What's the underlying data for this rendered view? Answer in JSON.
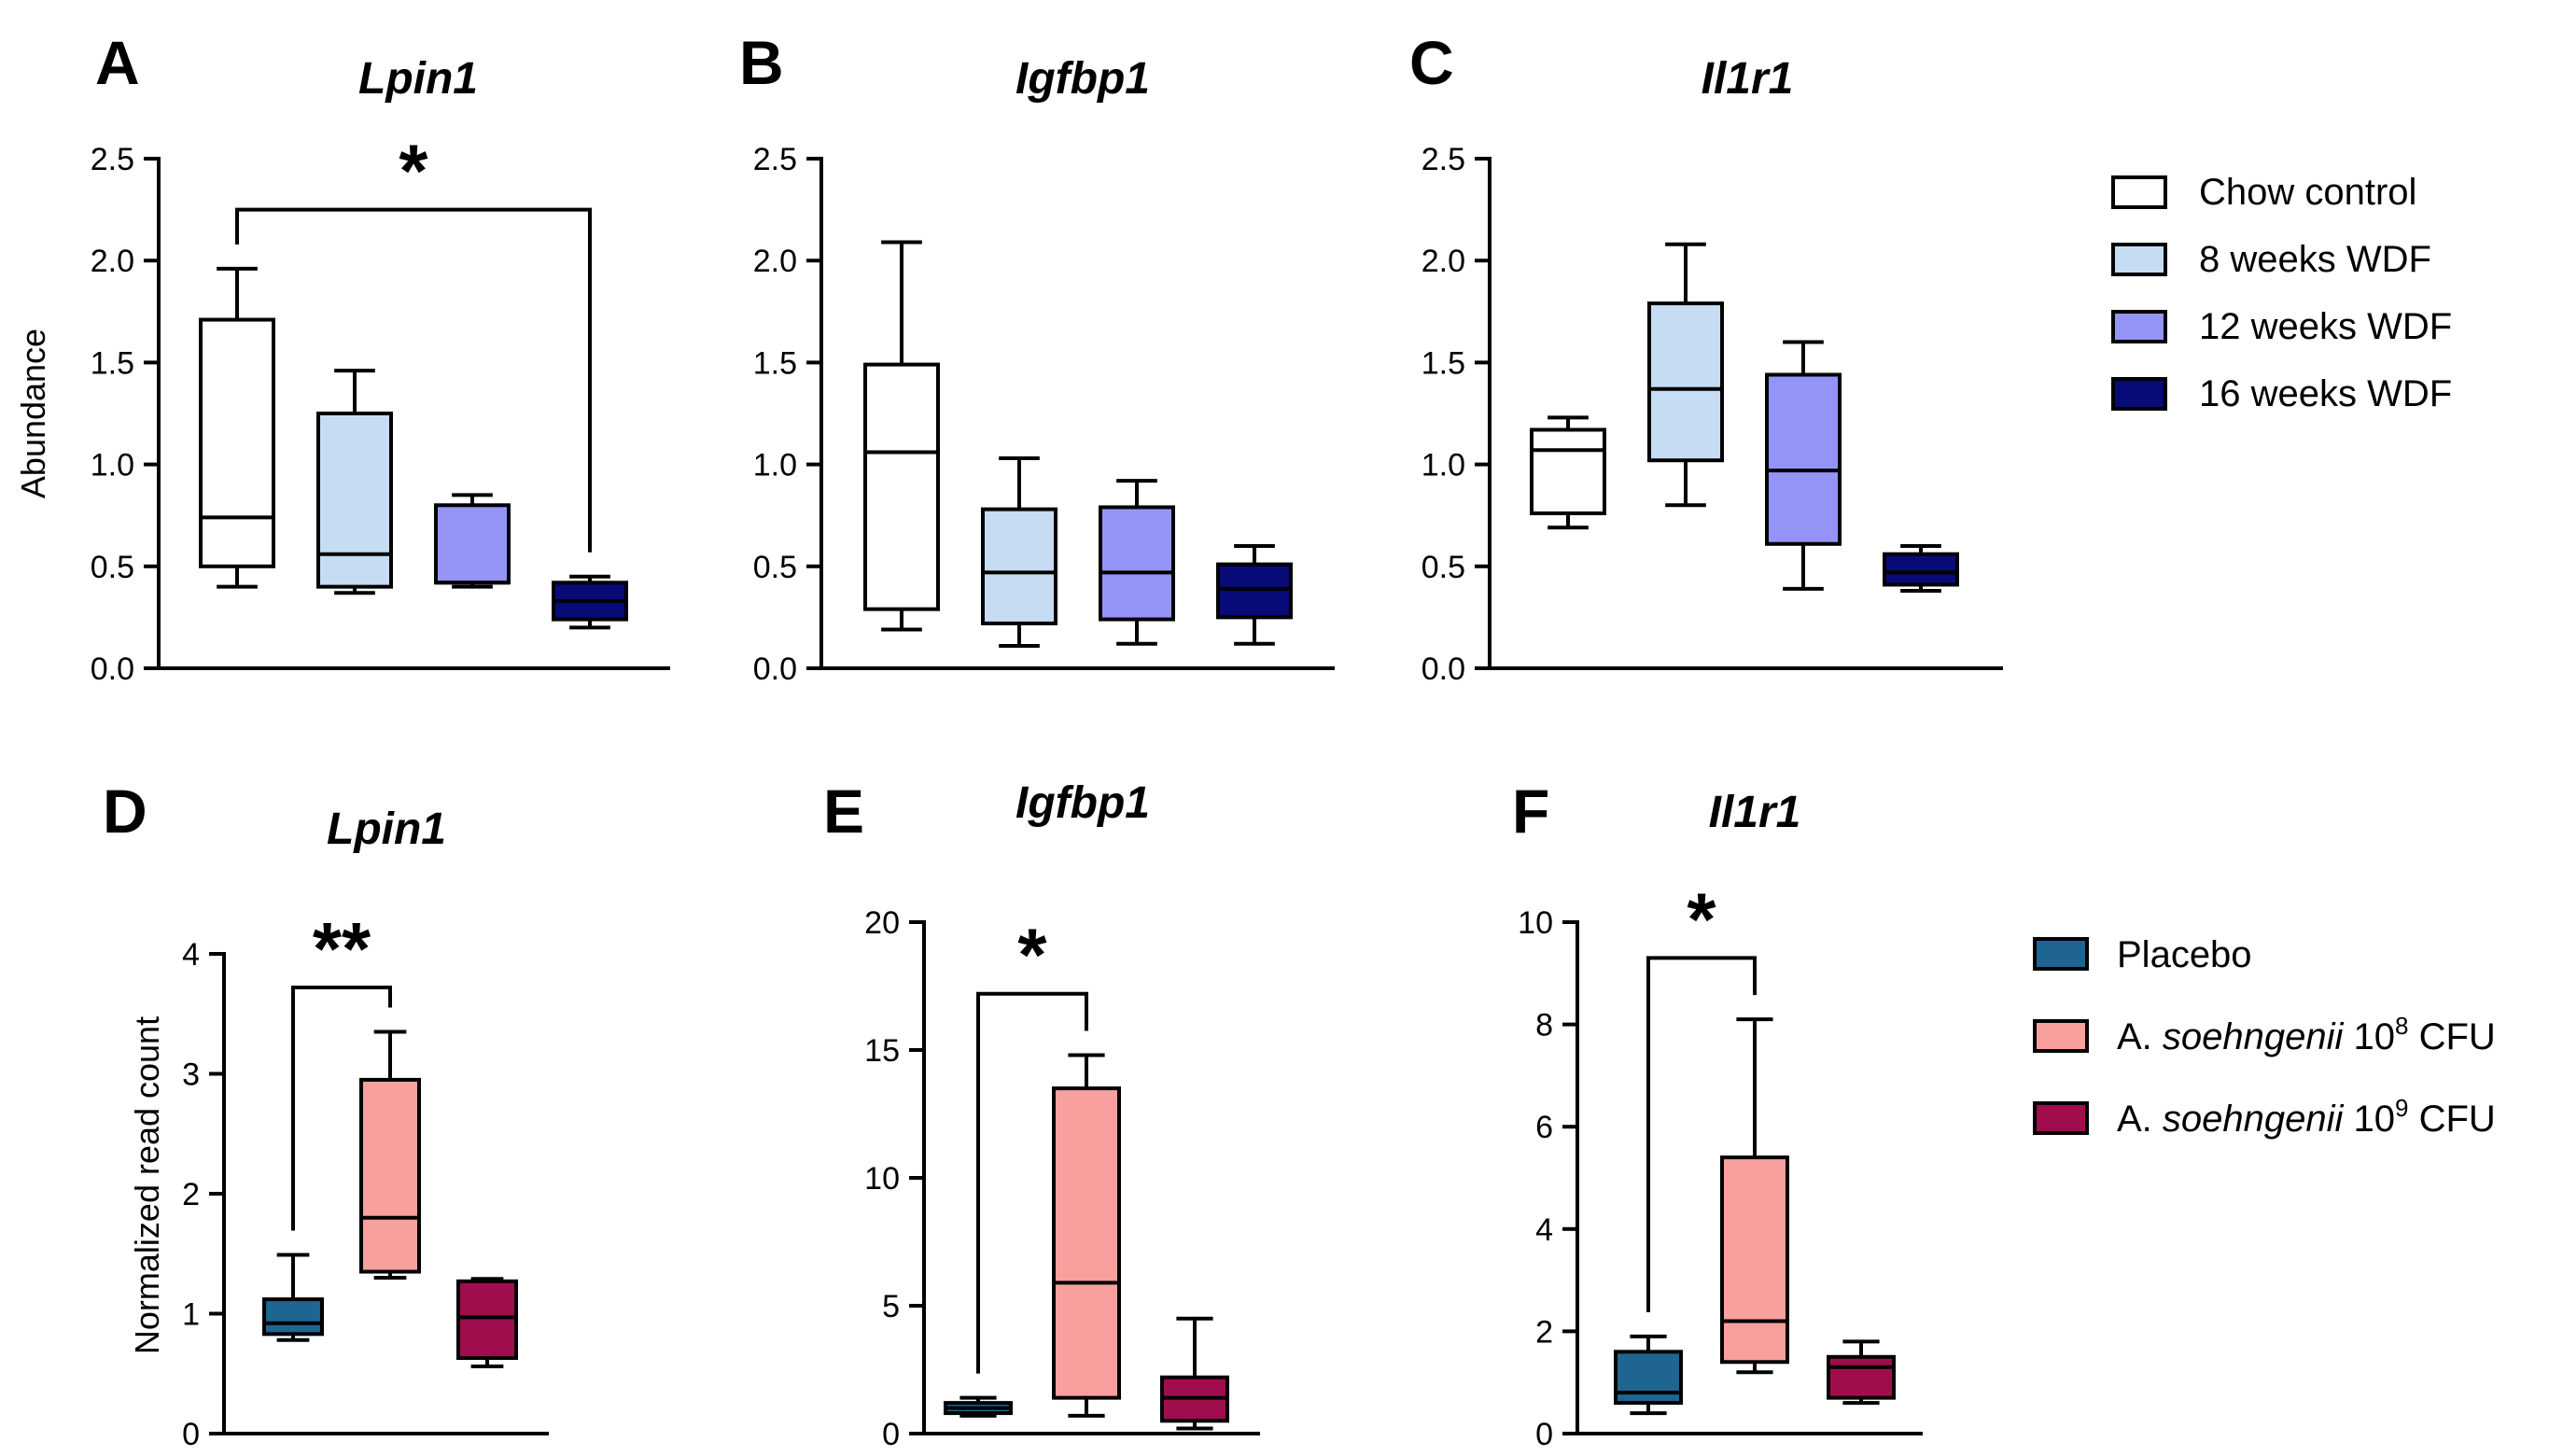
{
  "chart_data": [
    {
      "panel": "A",
      "title": "Lpin1",
      "type": "box",
      "ylabel": "Abundance",
      "ylim": [
        0,
        2.5
      ],
      "yticks": [
        "0.0",
        "0.5",
        "1.0",
        "1.5",
        "2.0",
        "2.5"
      ],
      "legend_group": "top",
      "boxes": [
        {
          "group": "Chow control",
          "min": 0.4,
          "q1": 0.5,
          "median": 0.74,
          "q3": 1.71,
          "max": 1.96
        },
        {
          "group": "8 weeks WDF",
          "min": 0.37,
          "q1": 0.4,
          "median": 0.56,
          "q3": 1.25,
          "max": 1.46
        },
        {
          "group": "12 weeks WDF",
          "min": 0.4,
          "q1": 0.42,
          "median": 0.42,
          "q3": 0.8,
          "max": 0.85
        },
        {
          "group": "16 weeks WDF",
          "min": 0.2,
          "q1": 0.24,
          "median": 0.33,
          "q3": 0.42,
          "max": 0.45
        }
      ],
      "significance": [
        {
          "from": 0,
          "to": 3,
          "y": 2.25,
          "label": "*"
        }
      ]
    },
    {
      "panel": "B",
      "title": "Igfbp1",
      "type": "box",
      "ylabel": "",
      "ylim": [
        0,
        2.5
      ],
      "yticks": [
        "0.0",
        "0.5",
        "1.0",
        "1.5",
        "2.0",
        "2.5"
      ],
      "legend_group": "top",
      "boxes": [
        {
          "group": "Chow control",
          "min": 0.19,
          "q1": 0.29,
          "median": 1.06,
          "q3": 1.49,
          "max": 2.09
        },
        {
          "group": "8 weeks WDF",
          "min": 0.11,
          "q1": 0.22,
          "median": 0.47,
          "q3": 0.78,
          "max": 1.03
        },
        {
          "group": "12 weeks WDF",
          "min": 0.12,
          "q1": 0.24,
          "median": 0.47,
          "q3": 0.79,
          "max": 0.92
        },
        {
          "group": "16 weeks WDF",
          "min": 0.12,
          "q1": 0.25,
          "median": 0.39,
          "q3": 0.51,
          "max": 0.6
        }
      ],
      "significance": []
    },
    {
      "panel": "C",
      "title": "Il1r1",
      "type": "box",
      "ylabel": "",
      "ylim": [
        0,
        2.5
      ],
      "yticks": [
        "0.0",
        "0.5",
        "1.0",
        "1.5",
        "2.0",
        "2.5"
      ],
      "legend_group": "top",
      "boxes": [
        {
          "group": "Chow control",
          "min": 0.69,
          "q1": 0.76,
          "median": 1.07,
          "q3": 1.17,
          "max": 1.23
        },
        {
          "group": "8 weeks WDF",
          "min": 0.8,
          "q1": 1.02,
          "median": 1.37,
          "q3": 1.79,
          "max": 2.08
        },
        {
          "group": "12 weeks WDF",
          "min": 0.39,
          "q1": 0.61,
          "median": 0.97,
          "q3": 1.44,
          "max": 1.6
        },
        {
          "group": "16 weeks WDF",
          "min": 0.38,
          "q1": 0.41,
          "median": 0.47,
          "q3": 0.56,
          "max": 0.6
        }
      ],
      "significance": []
    },
    {
      "panel": "D",
      "title": "Lpin1",
      "type": "box",
      "ylabel": "Normalized read count",
      "ylim": [
        0,
        4
      ],
      "yticks": [
        "0",
        "1",
        "2",
        "3",
        "4"
      ],
      "legend_group": "bottom",
      "boxes": [
        {
          "group": "Placebo",
          "min": 0.78,
          "q1": 0.83,
          "median": 0.92,
          "q3": 1.12,
          "max": 1.49
        },
        {
          "group": "A. soehngenii 10^8 CFU",
          "min": 1.3,
          "q1": 1.35,
          "median": 1.8,
          "q3": 2.95,
          "max": 3.35
        },
        {
          "group": "A. soehngenii 10^9 CFU",
          "min": 0.56,
          "q1": 0.63,
          "median": 0.97,
          "q3": 1.27,
          "max": 1.29
        }
      ],
      "significance": [
        {
          "from": 0,
          "to": 1,
          "y": 3.72,
          "label": "**"
        }
      ]
    },
    {
      "panel": "E",
      "title": "Igfbp1",
      "type": "box",
      "ylabel": "",
      "ylim": [
        0,
        20
      ],
      "yticks": [
        "0",
        "5",
        "10",
        "15",
        "20"
      ],
      "legend_group": "bottom",
      "boxes": [
        {
          "group": "Placebo",
          "min": 0.7,
          "q1": 0.8,
          "median": 1.0,
          "q3": 1.2,
          "max": 1.4
        },
        {
          "group": "A. soehngenii 10^8 CFU",
          "min": 0.7,
          "q1": 1.4,
          "median": 5.9,
          "q3": 13.5,
          "max": 14.8
        },
        {
          "group": "A. soehngenii 10^9 CFU",
          "min": 0.2,
          "q1": 0.5,
          "median": 1.4,
          "q3": 2.2,
          "max": 4.5
        }
      ],
      "significance": [
        {
          "from": 0,
          "to": 1,
          "y": 17.2,
          "label": "*"
        }
      ]
    },
    {
      "panel": "F",
      "title": "Il1r1",
      "type": "box",
      "ylabel": "",
      "ylim": [
        0,
        10
      ],
      "yticks": [
        "0",
        "2",
        "4",
        "6",
        "8",
        "10"
      ],
      "legend_group": "bottom",
      "boxes": [
        {
          "group": "Placebo",
          "min": 0.4,
          "q1": 0.6,
          "median": 0.8,
          "q3": 1.6,
          "max": 1.9
        },
        {
          "group": "A. soehngenii 10^8 CFU",
          "min": 1.2,
          "q1": 1.4,
          "median": 2.2,
          "q3": 5.4,
          "max": 8.1
        },
        {
          "group": "A. soehngenii 10^9 CFU",
          "min": 0.6,
          "q1": 0.7,
          "median": 1.3,
          "q3": 1.5,
          "max": 1.8
        }
      ],
      "significance": [
        {
          "from": 0,
          "to": 1,
          "y": 9.3,
          "label": "*"
        }
      ]
    }
  ],
  "legends": {
    "top": [
      {
        "label": "Chow control",
        "color": "#ffffff"
      },
      {
        "label": "8 weeks WDF",
        "color": "#c6dcf3"
      },
      {
        "label": "12 weeks WDF",
        "color": "#9494f7"
      },
      {
        "label": "16 weeks WDF",
        "color": "#080a78"
      }
    ],
    "bottom": [
      {
        "label": "Placebo",
        "color": "#1e6591"
      },
      {
        "label_prefix": "A. ",
        "label_species": "soehngenii",
        "label_dose": " 10",
        "label_exp": "8",
        "label_suffix": " CFU",
        "color": "#f8a09e"
      },
      {
        "label_prefix": "A. ",
        "label_species": "soehngenii",
        "label_dose": " 10",
        "label_exp": "9",
        "label_suffix": " CFU",
        "color": "#a00d4d"
      }
    ]
  }
}
